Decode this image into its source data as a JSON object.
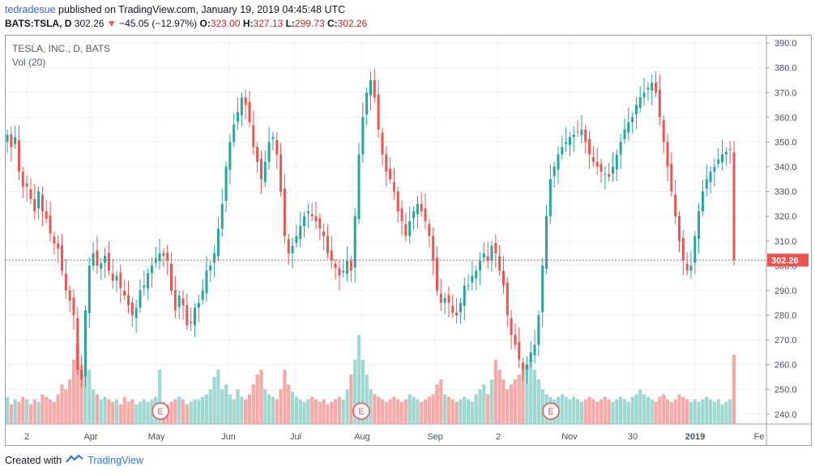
{
  "header": {
    "author": "tedradesue",
    "published_text": "published on TradingView.com, January 19, 2019 04:45:48 UTC",
    "symbol_line": "BATS:TSLA, D",
    "last_price": "302.26",
    "change_arrow": "▼",
    "change": "−45.05 (−12.97%)",
    "o_label": "O:",
    "o_value": "323.00",
    "h_label": "H:",
    "h_value": "327.13",
    "l_label": "L:",
    "l_value": "299.73",
    "c_label": "C:",
    "c_value": "302.26"
  },
  "legend": {
    "title": "TESLA, INC., D, BATS",
    "volume": "Vol (20)"
  },
  "footer": {
    "created_with": "Created with",
    "brand": "TradingView"
  },
  "colors": {
    "up": "#26a69a",
    "down": "#ef5350",
    "vol_up": "#9fd8d1",
    "vol_down": "#f6a9a7",
    "last_price_bg": "#ef5350",
    "grid": "#eef0f3"
  },
  "chart_data": {
    "type": "candlestick",
    "ylim": [
      236,
      393
    ],
    "y_ticks": [
      240,
      250,
      260,
      270,
      280,
      290,
      300,
      310,
      320,
      330,
      340,
      350,
      360,
      370,
      380,
      390
    ],
    "x_ticks": [
      "2",
      "Apr",
      "May",
      "Jun",
      "Jul",
      "Aug",
      "Sep",
      "2",
      "Nov",
      "30",
      "2019",
      "Fe"
    ],
    "last_price_label": "302.26",
    "earnings_markers": [
      "E",
      "E",
      "E"
    ],
    "close_series": [
      353,
      348,
      352,
      338,
      332,
      332,
      327,
      322,
      330,
      322,
      319,
      313,
      309,
      307,
      298,
      290,
      286,
      280,
      258,
      254,
      282,
      300,
      305,
      300,
      301,
      304,
      298,
      294,
      296,
      291,
      288,
      284,
      280,
      283,
      290,
      292,
      297,
      300,
      303,
      305,
      304,
      302,
      290,
      282,
      288,
      284,
      276,
      277,
      283,
      285,
      290,
      298,
      300,
      305,
      315,
      325,
      340,
      350,
      357,
      362,
      368,
      365,
      358,
      348,
      342,
      335,
      342,
      350,
      352,
      345,
      330,
      312,
      305,
      308,
      312,
      316,
      320,
      322,
      320,
      318,
      315,
      312,
      305,
      302,
      299,
      296,
      298,
      302,
      298,
      320,
      345,
      360,
      370,
      375,
      368,
      355,
      345,
      338,
      335,
      330,
      322,
      318,
      312,
      318,
      322,
      325,
      322,
      318,
      312,
      302,
      290,
      285,
      287,
      285,
      281,
      280,
      285,
      292,
      292,
      296,
      298,
      302,
      305,
      302,
      308,
      305,
      298,
      292,
      280,
      272,
      268,
      262,
      258,
      260,
      265,
      268,
      280,
      300,
      320,
      335,
      340,
      345,
      348,
      350,
      352,
      353,
      354,
      355,
      350,
      345,
      342,
      340,
      338,
      337,
      336,
      340,
      345,
      350,
      355,
      358,
      360,
      365,
      368,
      370,
      372,
      374,
      370,
      360,
      350,
      340,
      330,
      320,
      310,
      302,
      298,
      300,
      312,
      322,
      330,
      335,
      338,
      340,
      343,
      345,
      346,
      347,
      302.26
    ],
    "volume_series": [
      247,
      244,
      246,
      245,
      247,
      246,
      244,
      246,
      245,
      248,
      247,
      246,
      245,
      248,
      252,
      250,
      254,
      262,
      268,
      260,
      256,
      258,
      250,
      248,
      246,
      247,
      246,
      245,
      246,
      244,
      247,
      245,
      246,
      244,
      245,
      246,
      245,
      246,
      247,
      258,
      245,
      244,
      245,
      246,
      247,
      246,
      244,
      245,
      246,
      246,
      247,
      248,
      250,
      255,
      258,
      250,
      252,
      248,
      246,
      250,
      247,
      246,
      248,
      252,
      256,
      258,
      250,
      248,
      247,
      246,
      250,
      258,
      252,
      249,
      247,
      246,
      245,
      246,
      247,
      246,
      245,
      246,
      244,
      245,
      246,
      247,
      246,
      250,
      256,
      262,
      272,
      262,
      256,
      250,
      248,
      247,
      246,
      245,
      246,
      247,
      246,
      245,
      246,
      248,
      247,
      246,
      245,
      246,
      247,
      248,
      252,
      254,
      248,
      247,
      246,
      245,
      246,
      247,
      246,
      245,
      248,
      250,
      252,
      248,
      254,
      262,
      258,
      254,
      250,
      252,
      254,
      256,
      258,
      260,
      262,
      258,
      254,
      250,
      248,
      247,
      246,
      247,
      248,
      247,
      246,
      247,
      246,
      245,
      246,
      247,
      246,
      245,
      246,
      247,
      246,
      245,
      246,
      247,
      246,
      245,
      247,
      248,
      250,
      248,
      247,
      246,
      245,
      247,
      248,
      246,
      245,
      246,
      248,
      247,
      246,
      245,
      246,
      245,
      246,
      247,
      246,
      245,
      246,
      244,
      245,
      246,
      264
    ]
  }
}
